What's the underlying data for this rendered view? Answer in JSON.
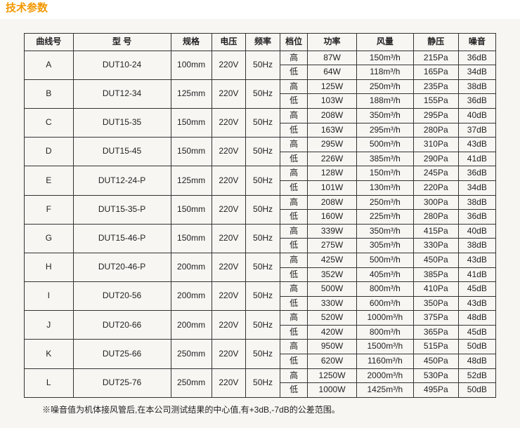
{
  "title": "技术参数",
  "headers": {
    "curve": "曲线号",
    "model": "型 号",
    "spec": "规格",
    "voltage": "电压",
    "freq": "频率",
    "level": "档位",
    "power": "功率",
    "airflow": "风量",
    "pressure": "静压",
    "noise": "噪音"
  },
  "levels": {
    "high": "高",
    "low": "低"
  },
  "colWidths": {
    "curve": 60,
    "model": 120,
    "spec": 50,
    "voltage": 42,
    "freq": 42,
    "level": 34,
    "power": 60,
    "airflow": 70,
    "pressure": 55,
    "noise": 46
  },
  "rows": [
    {
      "curve": "A",
      "model": "DUT10-24",
      "spec": "100mm",
      "voltage": "220V",
      "freq": "50Hz",
      "hi": {
        "power": "87W",
        "airflow": "150m³/h",
        "pressure": "215Pa",
        "noise": "36dB"
      },
      "lo": {
        "power": "64W",
        "airflow": "118m³/h",
        "pressure": "165Pa",
        "noise": "34dB"
      }
    },
    {
      "curve": "B",
      "model": "DUT12-34",
      "spec": "125mm",
      "voltage": "220V",
      "freq": "50Hz",
      "hi": {
        "power": "125W",
        "airflow": "250m³/h",
        "pressure": "235Pa",
        "noise": "38dB"
      },
      "lo": {
        "power": "103W",
        "airflow": "188m³/h",
        "pressure": "155Pa",
        "noise": "36dB"
      }
    },
    {
      "curve": "C",
      "model": "DUT15-35",
      "spec": "150mm",
      "voltage": "220V",
      "freq": "50Hz",
      "hi": {
        "power": "208W",
        "airflow": "350m³/h",
        "pressure": "295Pa",
        "noise": "40dB"
      },
      "lo": {
        "power": "163W",
        "airflow": "295m³/h",
        "pressure": "280Pa",
        "noise": "37dB"
      }
    },
    {
      "curve": "D",
      "model": "DUT15-45",
      "spec": "150mm",
      "voltage": "220V",
      "freq": "50Hz",
      "hi": {
        "power": "295W",
        "airflow": "500m³/h",
        "pressure": "310Pa",
        "noise": "43dB"
      },
      "lo": {
        "power": "226W",
        "airflow": "385m³/h",
        "pressure": "290Pa",
        "noise": "41dB"
      }
    },
    {
      "curve": "E",
      "model": "DUT12-24-P",
      "spec": "125mm",
      "voltage": "220V",
      "freq": "50Hz",
      "hi": {
        "power": "128W",
        "airflow": "150m³/h",
        "pressure": "245Pa",
        "noise": "36dB"
      },
      "lo": {
        "power": "101W",
        "airflow": "130m³/h",
        "pressure": "220Pa",
        "noise": "34dB"
      }
    },
    {
      "curve": "F",
      "model": "DUT15-35-P",
      "spec": "150mm",
      "voltage": "220V",
      "freq": "50Hz",
      "hi": {
        "power": "208W",
        "airflow": "250m³/h",
        "pressure": "300Pa",
        "noise": "38dB"
      },
      "lo": {
        "power": "160W",
        "airflow": "225m³/h",
        "pressure": "280Pa",
        "noise": "36dB"
      }
    },
    {
      "curve": "G",
      "model": "DUT15-46-P",
      "spec": "150mm",
      "voltage": "220V",
      "freq": "50Hz",
      "hi": {
        "power": "339W",
        "airflow": "350m³/h",
        "pressure": "415Pa",
        "noise": "40dB"
      },
      "lo": {
        "power": "275W",
        "airflow": "305m³/h",
        "pressure": "330Pa",
        "noise": "38dB"
      }
    },
    {
      "curve": "H",
      "model": "DUT20-46-P",
      "spec": "200mm",
      "voltage": "220V",
      "freq": "50Hz",
      "hi": {
        "power": "425W",
        "airflow": "500m³/h",
        "pressure": "450Pa",
        "noise": "43dB"
      },
      "lo": {
        "power": "352W",
        "airflow": "405m³/h",
        "pressure": "385Pa",
        "noise": "41dB"
      }
    },
    {
      "curve": "I",
      "model": "DUT20-56",
      "spec": "200mm",
      "voltage": "220V",
      "freq": "50Hz",
      "hi": {
        "power": "500W",
        "airflow": "800m³/h",
        "pressure": "410Pa",
        "noise": "45dB"
      },
      "lo": {
        "power": "330W",
        "airflow": "600m³/h",
        "pressure": "350Pa",
        "noise": "43dB"
      }
    },
    {
      "curve": "J",
      "model": "DUT20-66",
      "spec": "200mm",
      "voltage": "220V",
      "freq": "50Hz",
      "hi": {
        "power": "520W",
        "airflow": "1000m³/h",
        "pressure": "375Pa",
        "noise": "48dB"
      },
      "lo": {
        "power": "420W",
        "airflow": "800m³/h",
        "pressure": "365Pa",
        "noise": "45dB"
      }
    },
    {
      "curve": "K",
      "model": "DUT25-66",
      "spec": "250mm",
      "voltage": "220V",
      "freq": "50Hz",
      "hi": {
        "power": "950W",
        "airflow": "1500m³/h",
        "pressure": "515Pa",
        "noise": "50dB"
      },
      "lo": {
        "power": "620W",
        "airflow": "1160m³/h",
        "pressure": "450Pa",
        "noise": "48dB"
      }
    },
    {
      "curve": "L",
      "model": "DUT25-76",
      "spec": "250mm",
      "voltage": "220V",
      "freq": "50Hz",
      "hi": {
        "power": "1250W",
        "airflow": "2000m³/h",
        "pressure": "530Pa",
        "noise": "52dB"
      },
      "lo": {
        "power": "1000W",
        "airflow": "1425m³/h",
        "pressure": "495Pa",
        "noise": "50dB"
      }
    }
  ],
  "note": "※噪音值为机体接风管后,在本公司测试结果的中心值,有+3dB,-7dB的公差范围。"
}
